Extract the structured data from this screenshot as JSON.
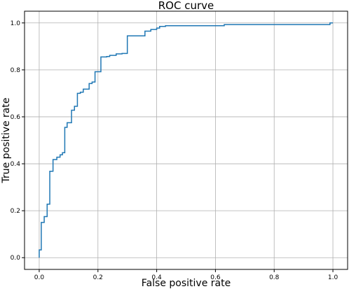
{
  "chart_data": {
    "type": "line",
    "title": "ROC curve",
    "xlabel": "False positive rate",
    "ylabel": "True positive rate",
    "xlim": [
      -0.05,
      1.05
    ],
    "ylim": [
      -0.05,
      1.05
    ],
    "xticks": [
      "0.0",
      "0.2",
      "0.4",
      "0.6",
      "0.8",
      "1.0"
    ],
    "yticks": [
      "0.0",
      "0.2",
      "0.4",
      "0.6",
      "0.8",
      "1.0"
    ],
    "xtick_values": [
      0.0,
      0.2,
      0.4,
      0.6,
      0.8,
      1.0
    ],
    "ytick_values": [
      0.0,
      0.2,
      0.4,
      0.6,
      0.8,
      1.0
    ],
    "grid": true,
    "line_color": "#1f77b4",
    "series": [
      {
        "x": [
          0.0,
          0.0,
          0.007,
          0.007,
          0.017,
          0.017,
          0.027,
          0.027,
          0.036,
          0.036,
          0.047,
          0.047,
          0.06,
          0.06,
          0.071,
          0.071,
          0.079,
          0.079,
          0.087,
          0.087,
          0.095,
          0.095,
          0.11,
          0.11,
          0.12,
          0.12,
          0.13,
          0.13,
          0.14,
          0.14,
          0.15,
          0.15,
          0.17,
          0.17,
          0.18,
          0.18,
          0.19,
          0.19,
          0.21,
          0.21,
          0.23,
          0.23,
          0.24,
          0.24,
          0.262,
          0.262,
          0.282,
          0.282,
          0.3,
          0.3,
          0.36,
          0.36,
          0.38,
          0.38,
          0.4,
          0.4,
          0.41,
          0.41,
          0.43,
          0.43,
          0.63,
          0.63,
          0.99,
          0.99,
          1.0
        ],
        "y": [
          0.0,
          0.033,
          0.033,
          0.15,
          0.15,
          0.175,
          0.175,
          0.228,
          0.228,
          0.368,
          0.368,
          0.418,
          0.418,
          0.428,
          0.428,
          0.438,
          0.438,
          0.447,
          0.447,
          0.555,
          0.555,
          0.575,
          0.575,
          0.628,
          0.628,
          0.645,
          0.645,
          0.7,
          0.7,
          0.705,
          0.705,
          0.718,
          0.718,
          0.742,
          0.742,
          0.748,
          0.748,
          0.792,
          0.792,
          0.855,
          0.855,
          0.857,
          0.857,
          0.862,
          0.862,
          0.868,
          0.868,
          0.87,
          0.87,
          0.945,
          0.945,
          0.965,
          0.965,
          0.972,
          0.972,
          0.978,
          0.978,
          0.985,
          0.985,
          0.988,
          0.988,
          0.993,
          0.993,
          1.0,
          1.0
        ]
      }
    ]
  }
}
